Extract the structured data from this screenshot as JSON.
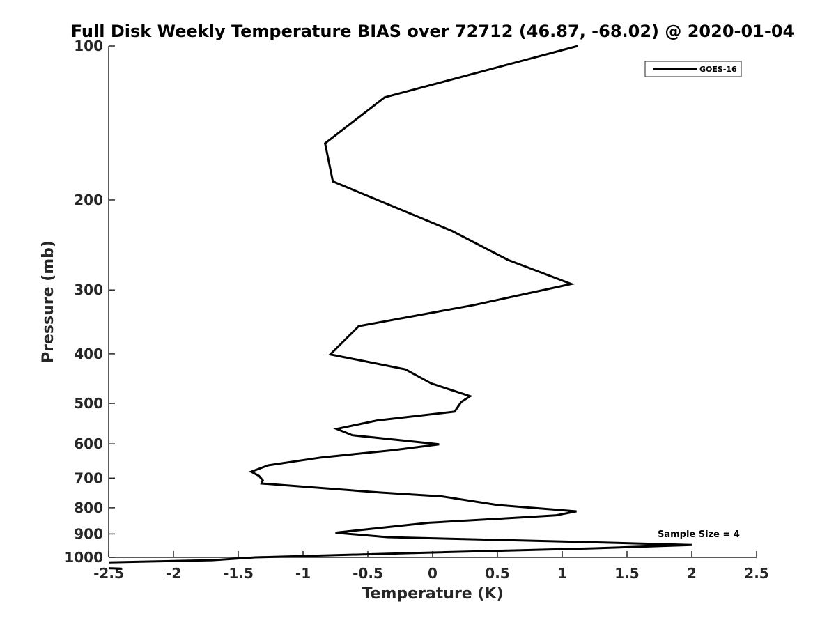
{
  "chart_data": {
    "type": "line",
    "title": "Full Disk Weekly Temperature BIAS over 72712 (46.87, -68.02) @ 2020-01-04",
    "xlabel": "Temperature (K)",
    "ylabel": "Pressure (mb)",
    "xlim": [
      -2.5,
      2.5
    ],
    "ylim": [
      100,
      1000
    ],
    "y_scale": "log",
    "y_reversed": true,
    "grid": false,
    "x_ticks": [
      -2.5,
      -2,
      -1.5,
      -1,
      -0.5,
      0,
      0.5,
      1,
      1.5,
      2,
      2.5
    ],
    "x_tick_labels": [
      "-2.5",
      "-2",
      "-1.5",
      "-1",
      "-0.5",
      "0",
      "0.5",
      "1",
      "1.5",
      "2",
      "2.5"
    ],
    "y_ticks": [
      100,
      200,
      300,
      400,
      500,
      600,
      700,
      800,
      900,
      1000
    ],
    "y_tick_labels": [
      "100",
      "200",
      "300",
      "400",
      "500",
      "600",
      "700",
      "800",
      "900",
      "1000"
    ],
    "legend": {
      "position": "top-right",
      "entries": [
        "GOES-16"
      ]
    },
    "annotation": "Sample Size = 4",
    "series": [
      {
        "name": "GOES-16",
        "color": "#000000",
        "points": [
          {
            "x": 1.12,
            "p": 100
          },
          {
            "x": -0.37,
            "p": 126
          },
          {
            "x": -0.83,
            "p": 155
          },
          {
            "x": -0.77,
            "p": 184
          },
          {
            "x": 0.15,
            "p": 230
          },
          {
            "x": 0.58,
            "p": 262
          },
          {
            "x": 1.07,
            "p": 292
          },
          {
            "x": 0.32,
            "p": 321
          },
          {
            "x": -0.57,
            "p": 353
          },
          {
            "x": -0.79,
            "p": 401
          },
          {
            "x": -0.21,
            "p": 429
          },
          {
            "x": -0.01,
            "p": 457
          },
          {
            "x": 0.29,
            "p": 484
          },
          {
            "x": 0.22,
            "p": 497
          },
          {
            "x": 0.17,
            "p": 519
          },
          {
            "x": -0.43,
            "p": 540
          },
          {
            "x": -0.74,
            "p": 561
          },
          {
            "x": -0.62,
            "p": 577
          },
          {
            "x": 0.05,
            "p": 601
          },
          {
            "x": -0.3,
            "p": 617
          },
          {
            "x": -0.86,
            "p": 638
          },
          {
            "x": -1.27,
            "p": 661
          },
          {
            "x": -1.4,
            "p": 680
          },
          {
            "x": -1.34,
            "p": 693
          },
          {
            "x": -1.31,
            "p": 707
          },
          {
            "x": -1.32,
            "p": 717
          },
          {
            "x": -0.4,
            "p": 747
          },
          {
            "x": 0.07,
            "p": 760
          },
          {
            "x": 0.5,
            "p": 790
          },
          {
            "x": 1.11,
            "p": 813
          },
          {
            "x": 0.95,
            "p": 828
          },
          {
            "x": -0.03,
            "p": 856
          },
          {
            "x": -0.75,
            "p": 895
          },
          {
            "x": -0.35,
            "p": 913
          },
          {
            "x": 1.22,
            "p": 934
          },
          {
            "x": 2.0,
            "p": 946
          },
          {
            "x": 1.25,
            "p": 960
          },
          {
            "x": -0.05,
            "p": 979
          },
          {
            "x": -1.37,
            "p": 1000
          },
          {
            "x": -1.7,
            "p": 1013
          },
          {
            "x": -2.5,
            "p": 1023
          }
        ]
      },
      {
        "name": "",
        "color": "#000000",
        "points": [
          {
            "x": -2.5,
            "p": 1050
          },
          {
            "x": -2.4,
            "p": 1052
          }
        ]
      }
    ]
  }
}
